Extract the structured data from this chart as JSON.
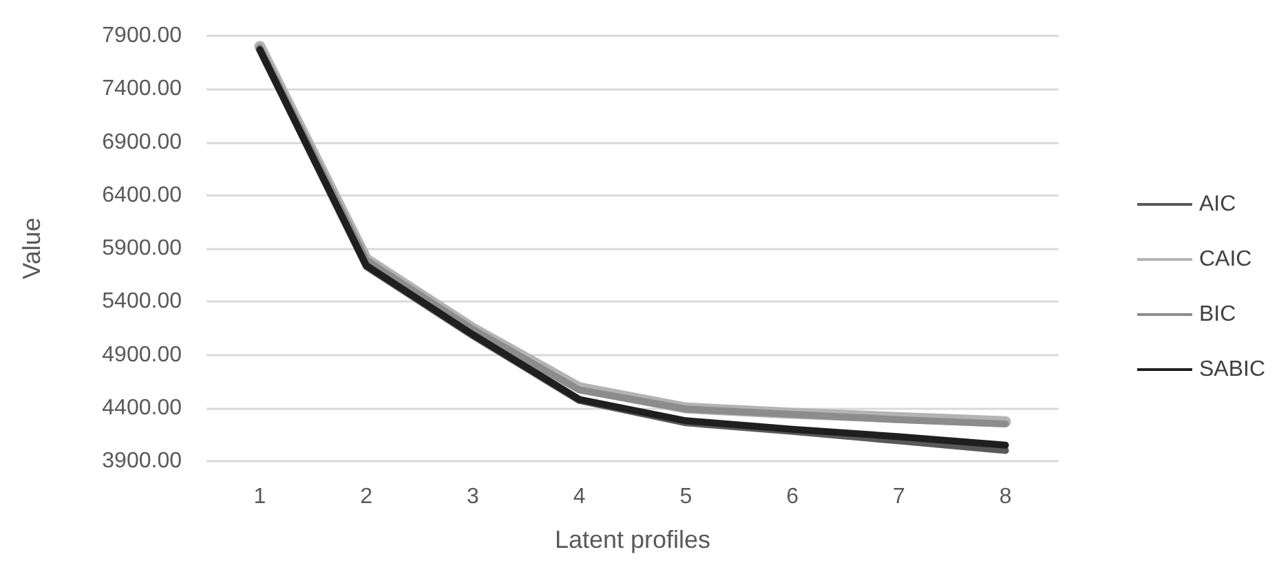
{
  "chart_data": {
    "type": "line",
    "xlabel": "Latent profiles",
    "ylabel": "Value",
    "categories": [
      "1",
      "2",
      "3",
      "4",
      "5",
      "6",
      "7",
      "8"
    ],
    "series": [
      {
        "name": "AIC",
        "color": "#595959",
        "values": [
          7770,
          5730,
          5080,
          4470,
          4260,
          4180,
          4090,
          4000
        ]
      },
      {
        "name": "CAIC",
        "color": "#b3b3b3",
        "values": [
          7800,
          5800,
          5150,
          4590,
          4400,
          4350,
          4310,
          4270
        ]
      },
      {
        "name": "BIC",
        "color": "#8c8c8c",
        "values": [
          7790,
          5790,
          5140,
          4570,
          4390,
          4340,
          4290,
          4250
        ]
      },
      {
        "name": "SABIC",
        "color": "#1f1f1f",
        "values": [
          7770,
          5740,
          5090,
          4480,
          4280,
          4200,
          4130,
          4050
        ]
      }
    ],
    "ylim": [
      3900,
      7900
    ],
    "yticks": [
      {
        "value": 3900,
        "label": "3900.00"
      },
      {
        "value": 4400,
        "label": "4400.00"
      },
      {
        "value": 4900,
        "label": "4900.00"
      },
      {
        "value": 5400,
        "label": "5400.00"
      },
      {
        "value": 5900,
        "label": "5900.00"
      },
      {
        "value": 6400,
        "label": "6400.00"
      },
      {
        "value": 6900,
        "label": "6900.00"
      },
      {
        "value": 7400,
        "label": "7400.00"
      },
      {
        "value": 7900,
        "label": "7900.00"
      }
    ],
    "grid": "y",
    "legend": "right",
    "marker": "none",
    "line_style": "solid"
  }
}
